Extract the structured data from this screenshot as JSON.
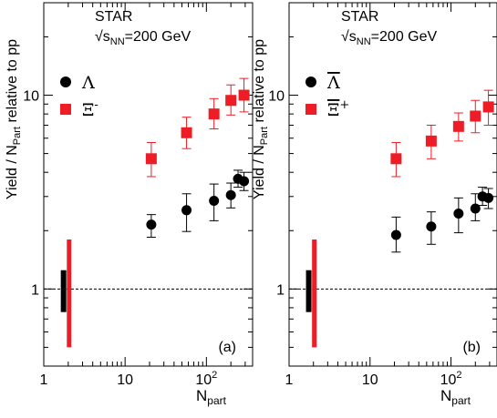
{
  "colors": {
    "red": "#ee1c24",
    "black": "#000000",
    "reference_line": "#000000"
  },
  "chart_data": [
    {
      "type": "scatter",
      "panel_label": "(a)",
      "experiment": "STAR",
      "energy": "√s",
      "energy_sub": "NN",
      "energy_value": "=200 GeV",
      "ylabel": "Yield / N",
      "ylabel_sub": "Part",
      "ylabel_tail": " relative to pp",
      "xlabel": "N",
      "xlabel_sub": "part",
      "x_scale": "log",
      "y_scale": "log",
      "xlim": [
        1,
        370
      ],
      "ylim": [
        0.4,
        30
      ],
      "x_ticks": [
        {
          "v": 1,
          "label": "1"
        },
        {
          "v": 10,
          "label": "10"
        },
        {
          "v": 100,
          "label": "10",
          "sup": "2"
        }
      ],
      "y_ticks": [
        {
          "v": 1,
          "label": "1"
        },
        {
          "v": 10,
          "label": "10"
        }
      ],
      "reference_line_y": 1,
      "legend_position": "upper-left",
      "series": [
        {
          "name": "Λ",
          "marker": "circle",
          "color": "#000000",
          "points": [
            {
              "x": 21,
              "y": 2.15,
              "lo": 1.85,
              "hi": 2.42
            },
            {
              "x": 57,
              "y": 2.55,
              "lo": 1.98,
              "hi": 3.1
            },
            {
              "x": 124,
              "y": 2.85,
              "lo": 2.25,
              "hi": 3.48
            },
            {
              "x": 200,
              "y": 3.05,
              "lo": 2.62,
              "hi": 3.52
            },
            {
              "x": 245,
              "y": 3.7,
              "lo": 3.35,
              "hi": 4.1
            },
            {
              "x": 290,
              "y": 3.6,
              "lo": 3.22,
              "hi": 4.0
            }
          ],
          "scale_error": {
            "x": 1.75,
            "lo": 0.76,
            "hi": 1.25
          }
        },
        {
          "name": "Ξ",
          "name_sup": "-",
          "marker": "square",
          "color": "#ee1c24",
          "points": [
            {
              "x": 21,
              "y": 4.7,
              "lo": 3.8,
              "hi": 5.7
            },
            {
              "x": 57,
              "y": 6.4,
              "lo": 5.3,
              "hi": 7.7
            },
            {
              "x": 124,
              "y": 8.0,
              "lo": 6.7,
              "hi": 9.6
            },
            {
              "x": 200,
              "y": 9.4,
              "lo": 7.9,
              "hi": 11.3
            },
            {
              "x": 290,
              "y": 10.0,
              "lo": 8.2,
              "hi": 12.2
            }
          ],
          "scale_error": {
            "x": 2.05,
            "lo": 0.5,
            "hi": 1.8
          }
        }
      ]
    },
    {
      "type": "scatter",
      "panel_label": "(b)",
      "experiment": "STAR",
      "energy": "√s",
      "energy_sub": "NN",
      "energy_value": "=200 GeV",
      "ylabel": "Yield / N",
      "ylabel_sub": "Part",
      "ylabel_tail": " relative to pp",
      "xlabel": "N",
      "xlabel_sub": "part",
      "x_scale": "log",
      "y_scale": "log",
      "xlim": [
        1,
        370
      ],
      "ylim": [
        0.4,
        30
      ],
      "x_ticks": [
        {
          "v": 1,
          "label": "1"
        },
        {
          "v": 10,
          "label": "10"
        },
        {
          "v": 100,
          "label": "10",
          "sup": "2"
        }
      ],
      "y_ticks": [
        {
          "v": 1,
          "label": "1"
        },
        {
          "v": 10,
          "label": "10"
        }
      ],
      "reference_line_y": 1,
      "legend_position": "upper-left",
      "series": [
        {
          "name": "Λ",
          "overline": true,
          "marker": "circle",
          "color": "#000000",
          "points": [
            {
              "x": 21,
              "y": 1.9,
              "lo": 1.55,
              "hi": 2.35
            },
            {
              "x": 57,
              "y": 2.1,
              "lo": 1.7,
              "hi": 2.5
            },
            {
              "x": 124,
              "y": 2.45,
              "lo": 1.95,
              "hi": 2.95
            },
            {
              "x": 200,
              "y": 2.6,
              "lo": 2.25,
              "hi": 3.1
            },
            {
              "x": 245,
              "y": 3.0,
              "lo": 2.7,
              "hi": 3.35
            },
            {
              "x": 290,
              "y": 2.95,
              "lo": 2.6,
              "hi": 3.3
            }
          ],
          "scale_error": {
            "x": 1.75,
            "lo": 0.76,
            "hi": 1.25
          }
        },
        {
          "name": "Ξ",
          "overline": true,
          "name_sup": "+",
          "marker": "square",
          "color": "#ee1c24",
          "points": [
            {
              "x": 21,
              "y": 4.7,
              "lo": 3.8,
              "hi": 5.7
            },
            {
              "x": 57,
              "y": 5.8,
              "lo": 4.7,
              "hi": 7.0
            },
            {
              "x": 124,
              "y": 6.9,
              "lo": 5.8,
              "hi": 8.1
            },
            {
              "x": 200,
              "y": 7.8,
              "lo": 6.4,
              "hi": 9.4
            },
            {
              "x": 290,
              "y": 8.7,
              "lo": 7.0,
              "hi": 10.6
            }
          ],
          "scale_error": {
            "x": 2.05,
            "lo": 0.5,
            "hi": 1.8
          }
        }
      ]
    }
  ]
}
